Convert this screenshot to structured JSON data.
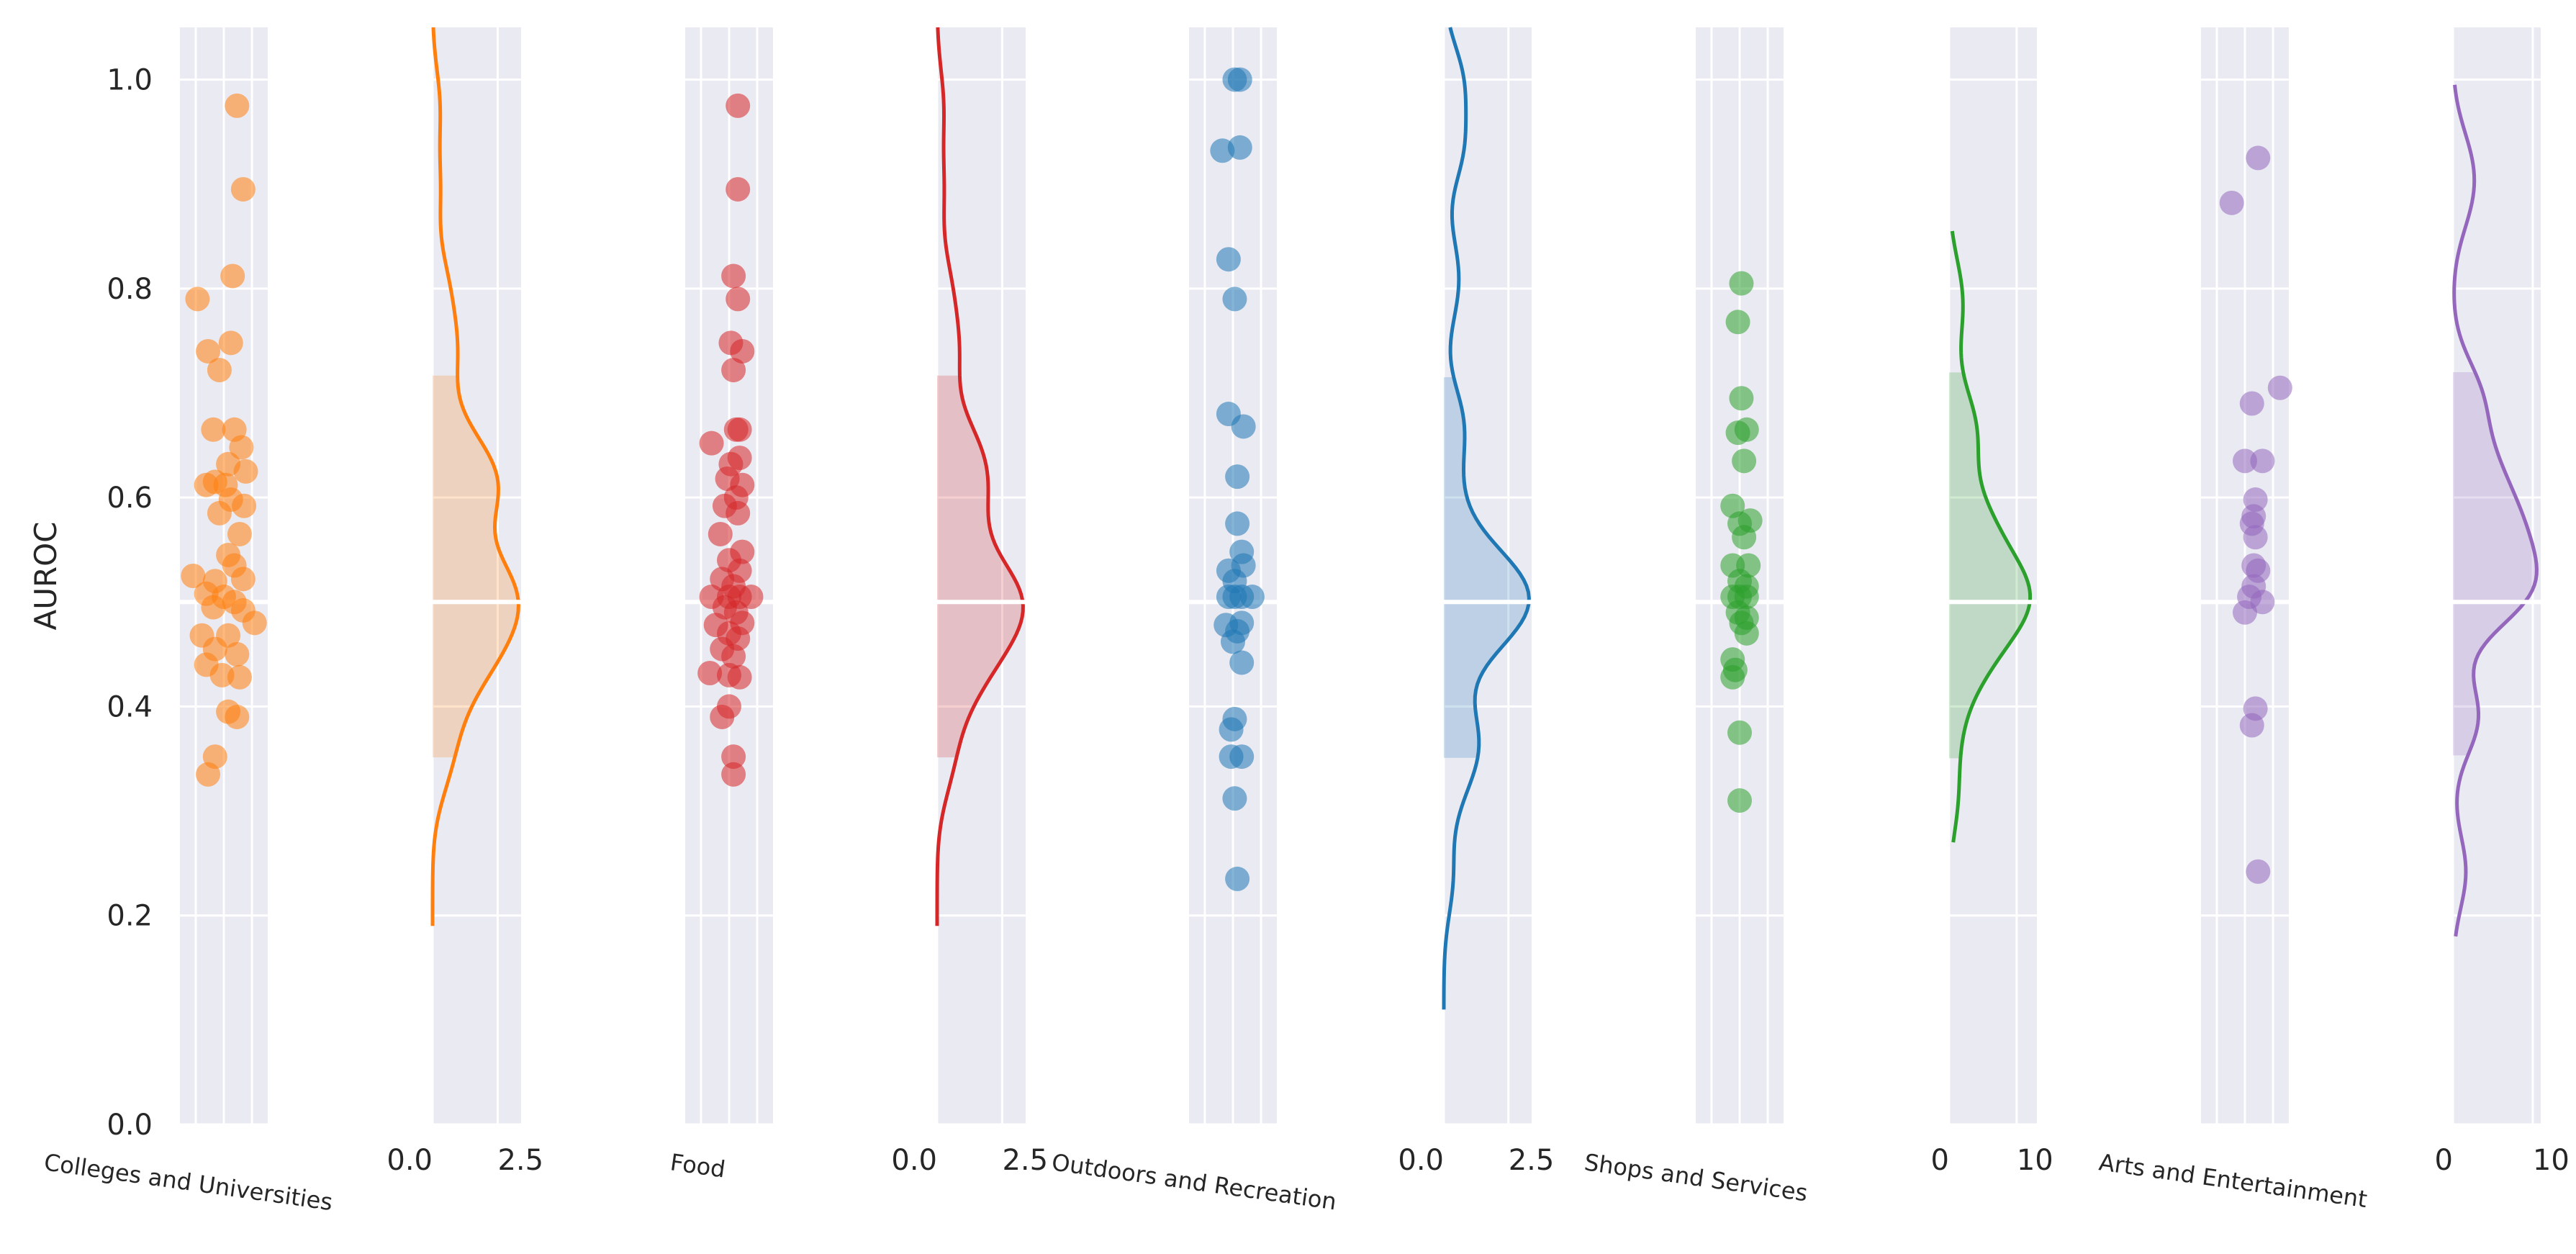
{
  "chart_data": {
    "type": "scatter",
    "ylabel": "AUROC",
    "ylim": [
      0,
      1.05
    ],
    "yticks": [
      0.0,
      0.2,
      0.4,
      0.6,
      0.8,
      1.0
    ],
    "ytick_labels": [
      "0.0",
      "0.2",
      "0.4",
      "0.6",
      "0.8",
      "1.0"
    ],
    "grid": true,
    "background": "#eaeaf2",
    "groups": [
      {
        "name": "Colleges and Universities",
        "color": "#ff7f0e",
        "density_xlim": [
          0,
          3.4
        ],
        "density_ticks": [
          0,
          2.5
        ],
        "density_tick_labels": [
          "0.0",
          "2.5"
        ],
        "density_ylim": [
          0.19,
          1.05
        ],
        "density_peak": 3.3,
        "points": [
          [
            0.65,
            0.975
          ],
          [
            0.72,
            0.895
          ],
          [
            0.6,
            0.812
          ],
          [
            0.2,
            0.79
          ],
          [
            0.58,
            0.748
          ],
          [
            0.32,
            0.74
          ],
          [
            0.45,
            0.722
          ],
          [
            0.38,
            0.665
          ],
          [
            0.62,
            0.665
          ],
          [
            0.7,
            0.648
          ],
          [
            0.55,
            0.632
          ],
          [
            0.75,
            0.625
          ],
          [
            0.4,
            0.615
          ],
          [
            0.3,
            0.612
          ],
          [
            0.52,
            0.612
          ],
          [
            0.58,
            0.598
          ],
          [
            0.73,
            0.592
          ],
          [
            0.45,
            0.585
          ],
          [
            0.68,
            0.565
          ],
          [
            0.55,
            0.545
          ],
          [
            0.62,
            0.535
          ],
          [
            0.15,
            0.525
          ],
          [
            0.4,
            0.52
          ],
          [
            0.72,
            0.522
          ],
          [
            0.3,
            0.508
          ],
          [
            0.5,
            0.505
          ],
          [
            0.62,
            0.5
          ],
          [
            0.38,
            0.495
          ],
          [
            0.72,
            0.492
          ],
          [
            0.85,
            0.48
          ],
          [
            0.25,
            0.468
          ],
          [
            0.55,
            0.468
          ],
          [
            0.4,
            0.455
          ],
          [
            0.65,
            0.45
          ],
          [
            0.3,
            0.44
          ],
          [
            0.48,
            0.43
          ],
          [
            0.68,
            0.428
          ],
          [
            0.55,
            0.395
          ],
          [
            0.65,
            0.39
          ],
          [
            0.4,
            0.352
          ],
          [
            0.32,
            0.335
          ]
        ]
      },
      {
        "name": "Food",
        "color": "#d62728",
        "density_xlim": [
          0,
          3.4
        ],
        "density_ticks": [
          0,
          2.5
        ],
        "density_tick_labels": [
          "0.0",
          "2.5"
        ],
        "density_ylim": [
          0.19,
          1.05
        ],
        "density_peak": 3.3,
        "points": [
          [
            0.6,
            0.975
          ],
          [
            0.6,
            0.895
          ],
          [
            0.55,
            0.812
          ],
          [
            0.6,
            0.79
          ],
          [
            0.52,
            0.748
          ],
          [
            0.65,
            0.74
          ],
          [
            0.55,
            0.722
          ],
          [
            0.62,
            0.665
          ],
          [
            0.58,
            0.665
          ],
          [
            0.3,
            0.652
          ],
          [
            0.62,
            0.638
          ],
          [
            0.52,
            0.632
          ],
          [
            0.48,
            0.618
          ],
          [
            0.65,
            0.612
          ],
          [
            0.58,
            0.6
          ],
          [
            0.45,
            0.592
          ],
          [
            0.6,
            0.585
          ],
          [
            0.4,
            0.565
          ],
          [
            0.65,
            0.548
          ],
          [
            0.5,
            0.54
          ],
          [
            0.62,
            0.53
          ],
          [
            0.42,
            0.522
          ],
          [
            0.55,
            0.515
          ],
          [
            0.3,
            0.505
          ],
          [
            0.5,
            0.505
          ],
          [
            0.62,
            0.505
          ],
          [
            0.75,
            0.505
          ],
          [
            0.45,
            0.495
          ],
          [
            0.58,
            0.49
          ],
          [
            0.65,
            0.48
          ],
          [
            0.35,
            0.478
          ],
          [
            0.5,
            0.47
          ],
          [
            0.6,
            0.465
          ],
          [
            0.42,
            0.455
          ],
          [
            0.55,
            0.448
          ],
          [
            0.28,
            0.432
          ],
          [
            0.5,
            0.43
          ],
          [
            0.62,
            0.428
          ],
          [
            0.5,
            0.4
          ],
          [
            0.42,
            0.39
          ],
          [
            0.55,
            0.352
          ],
          [
            0.55,
            0.335
          ]
        ]
      },
      {
        "name": "Outdoors and Recreation",
        "color": "#1f77b4",
        "density_xlim": [
          0,
          3.4
        ],
        "density_ticks": [
          0,
          2.5
        ],
        "density_tick_labels": [
          "0.0",
          "2.5"
        ],
        "density_ylim": [
          0.11,
          1.05
        ],
        "density_peak": 3.3,
        "points": [
          [
            0.52,
            1.0
          ],
          [
            0.58,
            1.0
          ],
          [
            0.38,
            0.932
          ],
          [
            0.58,
            0.935
          ],
          [
            0.45,
            0.828
          ],
          [
            0.52,
            0.79
          ],
          [
            0.45,
            0.68
          ],
          [
            0.62,
            0.668
          ],
          [
            0.55,
            0.62
          ],
          [
            0.55,
            0.575
          ],
          [
            0.6,
            0.548
          ],
          [
            0.62,
            0.535
          ],
          [
            0.45,
            0.53
          ],
          [
            0.52,
            0.52
          ],
          [
            0.45,
            0.505
          ],
          [
            0.52,
            0.505
          ],
          [
            0.6,
            0.505
          ],
          [
            0.72,
            0.505
          ],
          [
            0.42,
            0.478
          ],
          [
            0.55,
            0.472
          ],
          [
            0.6,
            0.48
          ],
          [
            0.5,
            0.462
          ],
          [
            0.6,
            0.442
          ],
          [
            0.52,
            0.388
          ],
          [
            0.48,
            0.378
          ],
          [
            0.48,
            0.352
          ],
          [
            0.6,
            0.352
          ],
          [
            0.52,
            0.312
          ],
          [
            0.55,
            0.235
          ]
        ]
      },
      {
        "name": "Shops and Services",
        "color": "#2ca02c",
        "density_xlim": [
          0,
          13
        ],
        "density_ticks": [
          0,
          10
        ],
        "density_tick_labels": [
          "0",
          "10"
        ],
        "density_ylim": [
          0.27,
          0.855
        ],
        "density_peak": 12,
        "points": [
          [
            0.52,
            0.805
          ],
          [
            0.48,
            0.768
          ],
          [
            0.52,
            0.695
          ],
          [
            0.58,
            0.665
          ],
          [
            0.48,
            0.662
          ],
          [
            0.55,
            0.635
          ],
          [
            0.42,
            0.592
          ],
          [
            0.62,
            0.578
          ],
          [
            0.5,
            0.575
          ],
          [
            0.55,
            0.562
          ],
          [
            0.42,
            0.535
          ],
          [
            0.6,
            0.535
          ],
          [
            0.5,
            0.52
          ],
          [
            0.58,
            0.515
          ],
          [
            0.42,
            0.505
          ],
          [
            0.5,
            0.505
          ],
          [
            0.58,
            0.505
          ],
          [
            0.48,
            0.49
          ],
          [
            0.58,
            0.485
          ],
          [
            0.52,
            0.48
          ],
          [
            0.58,
            0.47
          ],
          [
            0.42,
            0.445
          ],
          [
            0.45,
            0.435
          ],
          [
            0.42,
            0.428
          ],
          [
            0.5,
            0.375
          ],
          [
            0.5,
            0.31
          ]
        ]
      },
      {
        "name": "Arts and Entertainment",
        "color": "#9467bd",
        "density_xlim": [
          0,
          11
        ],
        "density_ticks": [
          0,
          10
        ],
        "density_tick_labels": [
          "0",
          "10"
        ],
        "density_ylim": [
          0.18,
          0.995
        ],
        "density_peak": 10.5,
        "points": [
          [
            0.65,
            0.925
          ],
          [
            0.35,
            0.882
          ],
          [
            0.9,
            0.705
          ],
          [
            0.58,
            0.69
          ],
          [
            0.5,
            0.635
          ],
          [
            0.7,
            0.635
          ],
          [
            0.62,
            0.598
          ],
          [
            0.6,
            0.582
          ],
          [
            0.58,
            0.575
          ],
          [
            0.62,
            0.562
          ],
          [
            0.6,
            0.535
          ],
          [
            0.65,
            0.53
          ],
          [
            0.6,
            0.515
          ],
          [
            0.55,
            0.505
          ],
          [
            0.7,
            0.5
          ],
          [
            0.5,
            0.49
          ],
          [
            0.62,
            0.398
          ],
          [
            0.58,
            0.382
          ],
          [
            0.65,
            0.242
          ]
        ]
      }
    ]
  }
}
